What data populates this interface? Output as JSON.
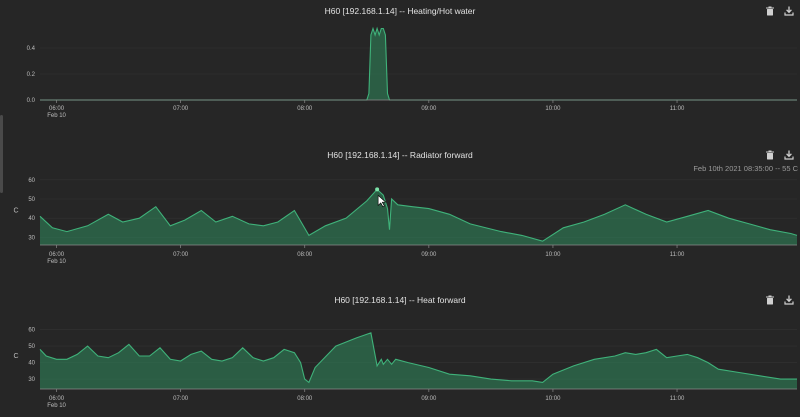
{
  "accent_color": "#2f8a5c",
  "panels": [
    {
      "title": "H60 [192.168.1.14] -- Heating/Hot water",
      "actions": [
        "trash-icon",
        "download-icon"
      ]
    },
    {
      "title": "H60 [192.168.1.14] -- Radiator forward",
      "actions": [
        "trash-icon",
        "download-icon"
      ],
      "hover_readout": "Feb 10th 2021 08:35:00 -- 55 C"
    },
    {
      "title": "H60 [192.168.1.14] -- Heat forward",
      "actions": [
        "trash-icon",
        "download-icon"
      ]
    }
  ],
  "chart_data": [
    {
      "type": "area",
      "title": "H60 [192.168.1.14] -- Heating/Hot water",
      "x_ticks": [
        "06:00",
        "07:00",
        "08:00",
        "09:00",
        "10:00",
        "11:00"
      ],
      "x_date_label": "Feb 10",
      "y_ticks": [
        0.0,
        0.2,
        0.4
      ],
      "ylim": [
        0,
        0.6
      ],
      "series": [
        {
          "x": [
            "05:52",
            "08:30",
            "08:31",
            "08:32",
            "08:33",
            "08:34",
            "08:35",
            "08:36",
            "08:37",
            "08:38",
            "08:39",
            "08:40",
            "08:41",
            "11:58"
          ],
          "values": [
            0,
            0,
            0.05,
            0.5,
            0.55,
            0.5,
            0.55,
            0.5,
            0.55,
            0.55,
            0.5,
            0.05,
            0,
            0
          ]
        }
      ]
    },
    {
      "type": "area",
      "title": "H60 [192.168.1.14] -- Radiator forward",
      "ylabel": "C",
      "x_ticks": [
        "06:00",
        "07:00",
        "08:00",
        "09:00",
        "10:00",
        "11:00"
      ],
      "x_date_label": "Feb 10",
      "y_ticks": [
        30,
        40,
        50,
        60
      ],
      "ylim": [
        26,
        62
      ],
      "series": [
        {
          "x": [
            "05:52",
            "05:58",
            "06:05",
            "06:15",
            "06:25",
            "06:32",
            "06:40",
            "06:48",
            "06:55",
            "07:02",
            "07:10",
            "07:17",
            "07:25",
            "07:33",
            "07:40",
            "07:47",
            "07:55",
            "08:02",
            "08:10",
            "08:20",
            "08:30",
            "08:35",
            "08:38",
            "08:40",
            "08:41",
            "08:42",
            "08:45",
            "08:52",
            "09:00",
            "09:10",
            "09:20",
            "09:35",
            "09:45",
            "09:55",
            "10:05",
            "10:15",
            "10:25",
            "10:35",
            "10:45",
            "10:55",
            "11:05",
            "11:15",
            "11:25",
            "11:35",
            "11:45",
            "11:55",
            "11:58"
          ],
          "values": [
            41,
            35,
            33,
            36,
            42,
            38,
            40,
            46,
            36,
            39,
            44,
            38,
            41,
            37,
            36,
            38,
            44,
            31,
            36,
            40,
            49,
            55,
            52,
            45,
            34,
            50,
            47,
            46,
            45,
            42,
            37,
            33,
            31,
            28,
            35,
            38,
            42,
            47,
            42,
            38,
            41,
            44,
            40,
            37,
            34,
            32,
            31
          ]
        }
      ]
    },
    {
      "type": "area",
      "title": "H60 [192.168.1.14] -- Heat forward",
      "ylabel": "C",
      "x_ticks": [
        "06:00",
        "07:00",
        "08:00",
        "09:00",
        "10:00",
        "11:00"
      ],
      "x_date_label": "Feb 10",
      "y_ticks": [
        30,
        40,
        50,
        60
      ],
      "ylim": [
        24,
        64
      ],
      "series": [
        {
          "x": [
            "05:52",
            "05:55",
            "06:00",
            "06:05",
            "06:10",
            "06:15",
            "06:20",
            "06:25",
            "06:30",
            "06:35",
            "06:40",
            "06:45",
            "06:50",
            "06:55",
            "07:00",
            "07:05",
            "07:10",
            "07:15",
            "07:20",
            "07:25",
            "07:30",
            "07:35",
            "07:40",
            "07:45",
            "07:50",
            "07:55",
            "07:58",
            "08:00",
            "08:02",
            "08:05",
            "08:15",
            "08:25",
            "08:32",
            "08:35",
            "08:37",
            "08:38",
            "08:40",
            "08:42",
            "08:44",
            "08:50",
            "09:00",
            "09:10",
            "09:20",
            "09:30",
            "09:40",
            "09:50",
            "09:55",
            "10:00",
            "10:10",
            "10:20",
            "10:30",
            "10:35",
            "10:40",
            "10:45",
            "10:50",
            "10:55",
            "11:00",
            "11:05",
            "11:10",
            "11:15",
            "11:20",
            "11:30",
            "11:40",
            "11:50",
            "11:58"
          ],
          "values": [
            48,
            44,
            42,
            42,
            45,
            50,
            44,
            43,
            46,
            51,
            44,
            44,
            49,
            42,
            41,
            45,
            47,
            42,
            41,
            43,
            49,
            43,
            41,
            43,
            48,
            46,
            40,
            30,
            28,
            37,
            50,
            55,
            58,
            38,
            42,
            39,
            42,
            39,
            42,
            40,
            37,
            33,
            32,
            30,
            29,
            29,
            28,
            33,
            38,
            42,
            44,
            46,
            45,
            46,
            48,
            43,
            44,
            45,
            43,
            40,
            36,
            34,
            32,
            30,
            30
          ]
        }
      ]
    }
  ]
}
